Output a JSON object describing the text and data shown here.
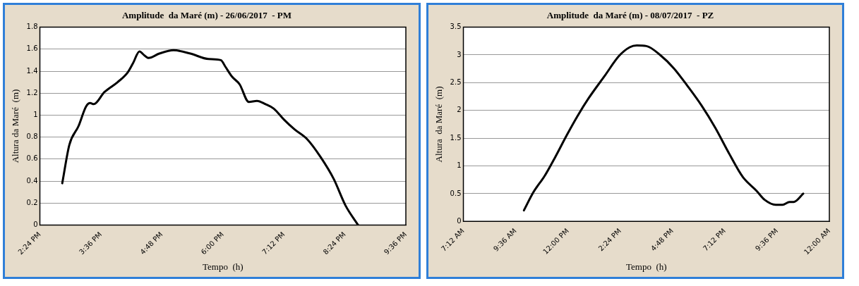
{
  "chart_data": [
    {
      "type": "line",
      "title": "Amplitude  da Maré (m) - 26/06/2017  - PM",
      "xlabel": "Tempo  (h)",
      "ylabel": "Altura da Maré  (m)",
      "grid": "y",
      "marker": "none",
      "line_style": "solid",
      "series": [
        {
          "color": "#000000",
          "x": [
            14.84,
            14.98,
            15.16,
            15.31,
            15.39,
            15.46,
            15.67,
            15.93,
            16.13,
            16.23,
            16.36,
            16.44,
            16.54,
            16.75,
            17.03,
            17.36,
            17.72,
            17.96,
            18.05,
            18.18,
            18.33,
            18.51,
            18.67,
            18.84,
            19.0,
            19.2,
            19.41,
            19.66,
            19.92,
            20.18,
            20.41,
            20.66
          ],
          "values": [
            0.38,
            0.73,
            0.9,
            1.08,
            1.11,
            1.1,
            1.21,
            1.3,
            1.39,
            1.47,
            1.58,
            1.55,
            1.52,
            1.56,
            1.59,
            1.56,
            1.51,
            1.5,
            1.44,
            1.35,
            1.28,
            1.12,
            1.13,
            1.1,
            1.06,
            0.96,
            0.87,
            0.78,
            0.62,
            0.42,
            0.18,
            0.0
          ]
        }
      ],
      "xlim": [
        14.4,
        21.6
      ],
      "xticks": [
        {
          "value": 14.4,
          "label": "2:24 PM"
        },
        {
          "value": 15.6,
          "label": "3:36 PM"
        },
        {
          "value": 16.8,
          "label": "4:48 PM"
        },
        {
          "value": 18.0,
          "label": "6:00 PM"
        },
        {
          "value": 19.2,
          "label": "7:12 PM"
        },
        {
          "value": 20.4,
          "label": "8:24 PM"
        },
        {
          "value": 21.6,
          "label": "9:36 PM"
        }
      ],
      "ylim": [
        0,
        1.8
      ],
      "yticks": [
        0,
        0.2,
        0.4,
        0.6,
        0.8,
        1,
        1.2,
        1.4,
        1.6,
        1.8
      ]
    },
    {
      "type": "line",
      "title": "Amplitude  da Maré (m) - 08/07/2017  - PZ",
      "xlabel": "Tempo  (h)",
      "ylabel": "Altura  da Maré  (m)",
      "grid": "y",
      "marker": "none",
      "line_style": "solid",
      "series": [
        {
          "color": "#000000",
          "x": [
            9.98,
            10.42,
            10.93,
            11.43,
            11.94,
            12.44,
            12.95,
            13.7,
            14.34,
            14.84,
            15.16,
            15.6,
            16.23,
            16.86,
            17.49,
            18.13,
            18.76,
            19.39,
            20.03,
            20.66,
            21.03,
            21.54,
            21.85,
            22.17,
            22.36,
            22.8
          ],
          "values": [
            0.2,
            0.53,
            0.82,
            1.17,
            1.55,
            1.9,
            2.22,
            2.63,
            2.98,
            3.14,
            3.17,
            3.16,
            3.0,
            2.76,
            2.44,
            2.09,
            1.69,
            1.23,
            0.8,
            0.55,
            0.39,
            0.3,
            0.3,
            0.35,
            0.35,
            0.5
          ]
        }
      ],
      "xlim": [
        7.2,
        24.0
      ],
      "xticks": [
        {
          "value": 7.2,
          "label": "7:12 AM"
        },
        {
          "value": 9.6,
          "label": "9:36 AM"
        },
        {
          "value": 12.0,
          "label": "12:00 PM"
        },
        {
          "value": 14.4,
          "label": "2:24 PM"
        },
        {
          "value": 16.8,
          "label": "4:48 PM"
        },
        {
          "value": 19.2,
          "label": "7:12 PM"
        },
        {
          "value": 21.6,
          "label": "9:36 PM"
        },
        {
          "value": 24.0,
          "label": "12:00 AM"
        }
      ],
      "ylim": [
        0,
        3.5
      ],
      "yticks": [
        0,
        0.5,
        1,
        1.5,
        2,
        2.5,
        3,
        3.5
      ]
    }
  ]
}
